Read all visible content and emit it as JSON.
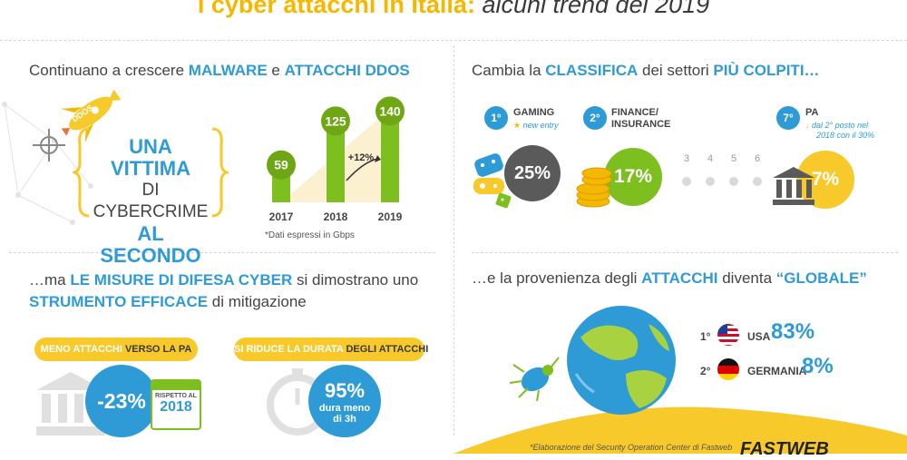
{
  "header": {
    "title_bold": "I cyber attacchi in Italia:",
    "title_italic": "alcuni trend del 2019"
  },
  "colors": {
    "yellow": "#f8c92a",
    "blue": "#2e9bd6",
    "green": "#7cbf1e",
    "dark_gray": "#555555"
  },
  "malware": {
    "heading_pre": "Continuano a crescere ",
    "heading_hl1": "MALWARE",
    "heading_mid": " e ",
    "heading_hl2": "ATTACCHI DDOS",
    "rocket_label": "DDOS",
    "victim_line1": "UNA VITTIMA",
    "victim_line2": "DI CYBERCRIME",
    "victim_line3": "AL SECONDO",
    "growth_label": "+12%",
    "footnote": "*Dati espressi in Gbps"
  },
  "chart_data": {
    "type": "bar",
    "categories": [
      "2017",
      "2018",
      "2019"
    ],
    "values": [
      59,
      125,
      140
    ],
    "title": "",
    "xlabel": "",
    "ylabel": "",
    "ylim": [
      0,
      150
    ],
    "annotations": [
      "+12%"
    ]
  },
  "sectors": {
    "heading_pre": "Cambia la ",
    "heading_hl1": "CLASSIFICA",
    "heading_mid": " dei settori ",
    "heading_hl2": "PIÙ COLPITI…",
    "items": [
      {
        "rank": "1°",
        "name_line1": "GAMING",
        "name_line2": "",
        "note_line1": "new entry",
        "note_line2": "",
        "pct": "25%",
        "icon": "gamepad-icon"
      },
      {
        "rank": "2°",
        "name_line1": "FINANCE/",
        "name_line2": "INSURANCE",
        "note_line1": "",
        "note_line2": "",
        "pct": "17%",
        "icon": "coins-icon"
      },
      {
        "rank": "7°",
        "name_line1": "PA",
        "name_line2": "",
        "note_line1": "dal 2° posto nel",
        "note_line2": "2018 con il 30%",
        "pct": "7%",
        "icon": "bank-icon"
      }
    ],
    "middle_ranks": [
      "3",
      "4",
      "5",
      "6"
    ]
  },
  "defense": {
    "heading_pre": "…ma ",
    "heading_hl1": "LE MISURE DI DIFESA CYBER",
    "heading_mid": " si dimostrano uno",
    "heading_hl2": "STRUMENTO EFFICACE",
    "heading_post": " di mitigazione",
    "pill1_a": "MENO ATTACCHI ",
    "pill1_b": "VERSO LA PA",
    "pill2_a": "SI RIDUCE LA DURATA ",
    "pill2_b": "DEGLI ATTACCHI",
    "reduction": "-23%",
    "calendar_line1": "RISPETTO AL",
    "calendar_year": "2018",
    "duration_pct": "95%",
    "duration_line1": "dura meno",
    "duration_line2": "di 3h"
  },
  "origin": {
    "heading_pre": "…e la provenienza degli ",
    "heading_hl1": "ATTACCHI",
    "heading_mid": " diventa ",
    "heading_hl2": "“GLOBALE”",
    "countries": [
      {
        "rank": "1°",
        "name": "USA",
        "pct": "83%",
        "flag": "usa-flag-icon"
      },
      {
        "rank": "2°",
        "name": "GERMANIA",
        "pct": "8%",
        "flag": "germany-flag-icon"
      }
    ],
    "source_note": "*Elaborazione del Security Operation Center di Fastweb",
    "logo": "FASTWEB"
  }
}
